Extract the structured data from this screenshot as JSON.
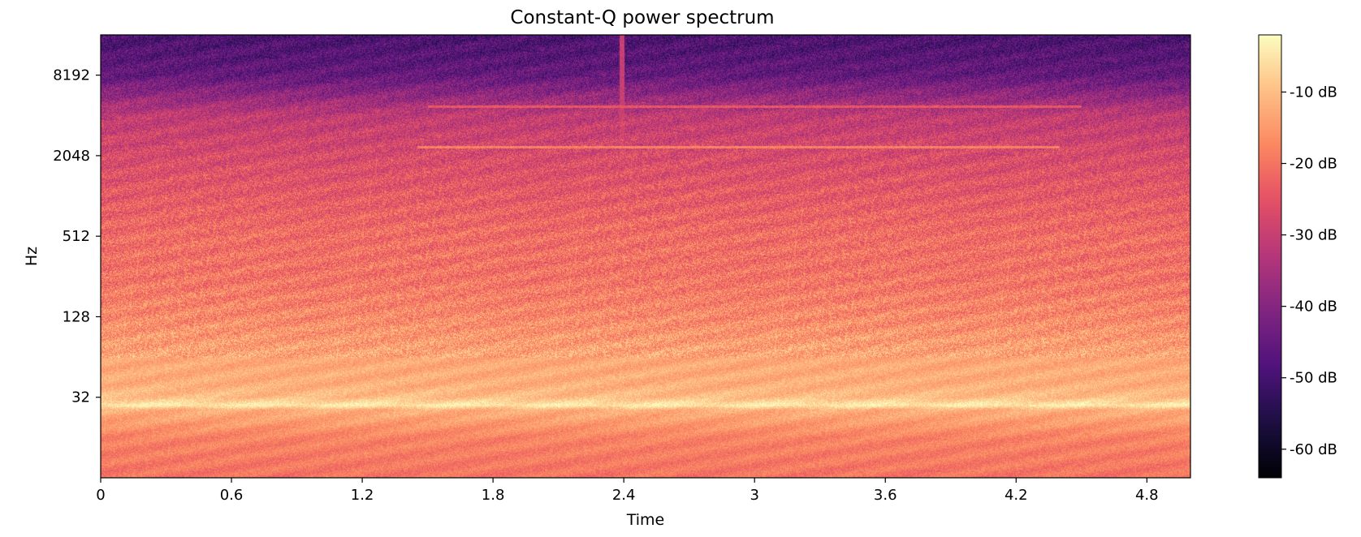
{
  "chart_data": {
    "type": "heatmap",
    "title": "Constant-Q power spectrum",
    "xlabel": "Time",
    "ylabel": "Hz",
    "xlim": [
      0,
      5.0
    ],
    "x_ticks": [
      0,
      0.6,
      1.2,
      1.8,
      2.4,
      3,
      3.6,
      4.2,
      4.8
    ],
    "x_tick_labels": [
      "0",
      "0.6",
      "1.2",
      "1.8",
      "2.4",
      "3",
      "3.6",
      "4.2",
      "4.8"
    ],
    "y_scale": "log2",
    "ylim": [
      8,
      16384
    ],
    "y_ticks": [
      32,
      128,
      512,
      2048,
      8192
    ],
    "y_tick_labels": [
      "32",
      "128",
      "512",
      "2048",
      "8192"
    ],
    "colormap": "magma",
    "colorbar": {
      "label_unit": "dB",
      "range": [
        -64,
        -2
      ],
      "ticks": [
        -10,
        -20,
        -30,
        -40,
        -50,
        -60
      ],
      "tick_labels": [
        "-10 dB",
        "-20 dB",
        "-30 dB",
        "-40 dB",
        "-50 dB",
        "-60 dB"
      ]
    },
    "spectral_profile": {
      "frequency_hz": [
        8,
        16,
        22,
        26,
        28,
        32,
        40,
        64,
        128,
        256,
        512,
        1024,
        2048,
        4096,
        8192,
        16384
      ],
      "power_db": [
        -20,
        -18,
        -14,
        -12,
        -4,
        -10,
        -12,
        -13,
        -17,
        -20,
        -21,
        -24,
        -27,
        -31,
        -45,
        -49
      ]
    },
    "features": [
      {
        "kind": "horizontal-line",
        "frequency_hz": 2400,
        "time_start": 1.45,
        "time_end": 4.4,
        "power_db": -18
      },
      {
        "kind": "horizontal-line",
        "frequency_hz": 4800,
        "time_start": 1.5,
        "time_end": 4.5,
        "power_db": -24
      },
      {
        "kind": "vertical-transient",
        "time": 2.39,
        "power_db": -30
      }
    ]
  }
}
